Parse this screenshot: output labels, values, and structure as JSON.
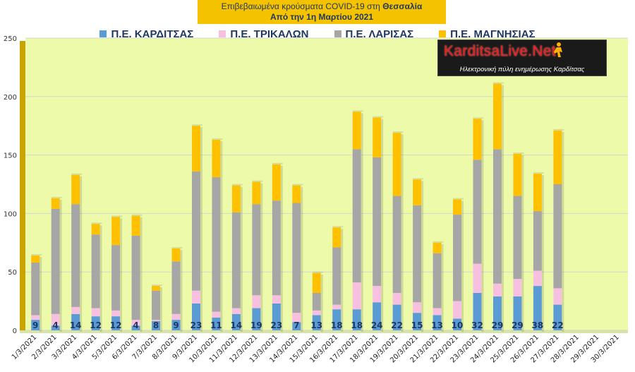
{
  "title": {
    "line1_prefix": "Επιβεβαιωμένα κρούσματα COVID-19 στη ",
    "line1_bold": "Θεσσαλία",
    "line2": "Από την 1η Μαρτίου 2021"
  },
  "logo": {
    "main_text": "KarditsaLive.Net",
    "sub_text": "Ηλεκτρονική πύλη ενημέρωσης Καρδίτσας"
  },
  "colors": {
    "plot_bg": "#ecfaaa",
    "page_bg": "#ffffff",
    "grid": "#d0d8c8",
    "karditsa": "#5b9bd5",
    "trikala": "#f8c0e0",
    "larisa": "#a6a6a6",
    "magnisia": "#ffc000"
  },
  "chart_data": {
    "type": "bar",
    "stacked": true,
    "categories": [
      "1/3/2021",
      "2/3/2021",
      "3/3/2021",
      "4/3/2021",
      "5/3/2021",
      "6/3/2021",
      "7/3/2021",
      "8/3/2021",
      "9/3/2021",
      "10/3/2021",
      "11/3/2021",
      "12/3/2021",
      "13/3/2021",
      "14/3/2021",
      "15/3/2021",
      "16/3/2021",
      "17/3/2021",
      "18/3/2021",
      "19/3/2021",
      "20/3/2021",
      "21/3/2021",
      "22/3/2021",
      "23/3/2021",
      "24/3/2021",
      "25/3/2021",
      "26/3/2021",
      "27/3/2021",
      "28/3/2021",
      "29/3/2021",
      "30/3/2021"
    ],
    "series": [
      {
        "name": "Π.Ε. ΚΑΡΔΙΤΣΑΣ",
        "color": "#5b9bd5",
        "values": [
          9,
          4,
          14,
          12,
          12,
          4,
          8,
          9,
          23,
          11,
          14,
          19,
          23,
          7,
          13,
          18,
          18,
          24,
          22,
          15,
          13,
          10,
          32,
          29,
          29,
          38,
          22,
          0,
          0,
          0
        ]
      },
      {
        "name": "Π.Ε. ΤΡΙΚΑΛΩΝ",
        "color": "#f8c0e0",
        "values": [
          4,
          10,
          6,
          7,
          5,
          5,
          1,
          5,
          11,
          5,
          5,
          11,
          7,
          8,
          4,
          4,
          23,
          14,
          10,
          9,
          6,
          15,
          25,
          11,
          15,
          13,
          14,
          0,
          0,
          0
        ]
      },
      {
        "name": "Π.Ε. ΛΑΡΙΣΑΣ",
        "color": "#a6a6a6",
        "values": [
          45,
          90,
          88,
          63,
          56,
          72,
          25,
          45,
          102,
          115,
          82,
          78,
          81,
          94,
          15,
          49,
          114,
          110,
          83,
          83,
          47,
          74,
          89,
          115,
          71,
          51,
          89,
          0,
          0,
          0
        ]
      },
      {
        "name": "Π.Ε. ΜΑΓΝΗΣΙΑΣ",
        "color": "#ffc000",
        "values": [
          6,
          9,
          25,
          9,
          24,
          17,
          4,
          11,
          39,
          32,
          23,
          19,
          31,
          15,
          17,
          17,
          32,
          34,
          54,
          22,
          9,
          13,
          35,
          56,
          36,
          32,
          46,
          0,
          0,
          0
        ]
      }
    ],
    "data_labels_series": "Π.Ε. ΚΑΡΔΙΤΣΑΣ",
    "data_labels": [
      "9",
      "4",
      "14",
      "12",
      "12",
      "4",
      "8",
      "9",
      "23",
      "11",
      "14",
      "19",
      "23",
      "7",
      "13",
      "18",
      "18",
      "24",
      "22",
      "15",
      "13",
      "10",
      "32",
      "29",
      "29",
      "38",
      "22",
      "",
      "",
      ""
    ],
    "ylim": [
      0,
      250
    ],
    "yticks": [
      "0",
      "50",
      "100",
      "150",
      "200",
      "250"
    ],
    "grid": true,
    "legend_position": "top"
  }
}
